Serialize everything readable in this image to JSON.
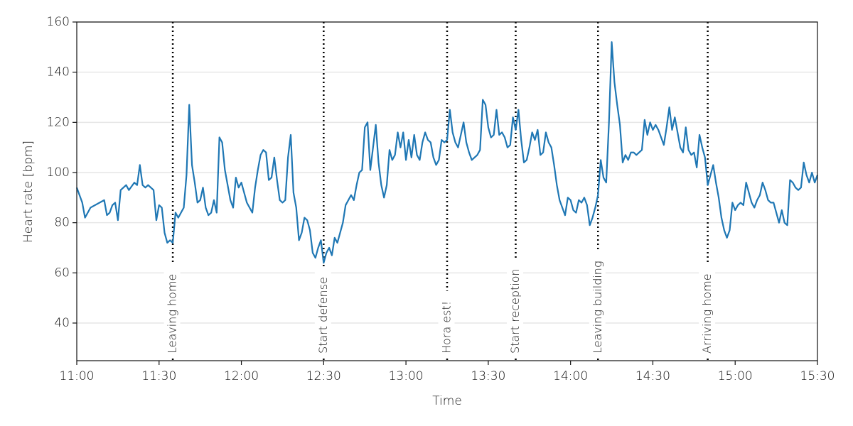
{
  "chart_data": {
    "type": "line",
    "xlabel": "Time",
    "ylabel": "Heart rate [bpm]",
    "xlim": [
      "11:00",
      "15:30"
    ],
    "xticks": [
      "11:00",
      "11:30",
      "12:00",
      "12:30",
      "13:00",
      "13:30",
      "14:00",
      "14:30",
      "15:00",
      "15:30"
    ],
    "ylim": [
      25,
      160
    ],
    "yticks": [
      40,
      60,
      80,
      100,
      120,
      140,
      160
    ],
    "grid": true,
    "annotations": [
      {
        "x": "11:35",
        "label": "Leaving home"
      },
      {
        "x": "12:30",
        "label": "Start defense"
      },
      {
        "x": "13:15",
        "label": "Hora est!"
      },
      {
        "x": "13:40",
        "label": "Start reception"
      },
      {
        "x": "14:10",
        "label": "Leaving building"
      },
      {
        "x": "14:50",
        "label": "Arriving home"
      }
    ],
    "x": [
      "11:00",
      "11:02",
      "11:03",
      "11:05",
      "11:10",
      "11:11",
      "11:12",
      "11:13",
      "11:14",
      "11:15",
      "11:16",
      "11:18",
      "11:19",
      "11:21",
      "11:22",
      "11:23",
      "11:24",
      "11:25",
      "11:26",
      "11:28",
      "11:29",
      "11:30",
      "11:31",
      "11:32",
      "11:33",
      "11:34",
      "11:35",
      "11:36",
      "11:37",
      "11:38",
      "11:39",
      "11:40",
      "11:41",
      "11:42",
      "11:43",
      "11:44",
      "11:45",
      "11:46",
      "11:47",
      "11:48",
      "11:49",
      "11:50",
      "11:51",
      "11:52",
      "11:53",
      "11:54",
      "11:55",
      "11:56",
      "11:57",
      "11:58",
      "11:59",
      "12:00",
      "12:01",
      "12:02",
      "12:03",
      "12:04",
      "12:05",
      "12:06",
      "12:07",
      "12:08",
      "12:09",
      "12:10",
      "12:11",
      "12:12",
      "12:13",
      "12:14",
      "12:15",
      "12:16",
      "12:17",
      "12:18",
      "12:19",
      "12:20",
      "12:21",
      "12:22",
      "12:23",
      "12:24",
      "12:25",
      "12:26",
      "12:27",
      "12:28",
      "12:29",
      "12:30",
      "12:31",
      "12:32",
      "12:33",
      "12:34",
      "12:35",
      "12:36",
      "12:37",
      "12:38",
      "12:39",
      "12:40",
      "12:41",
      "12:42",
      "12:43",
      "12:44",
      "12:45",
      "12:46",
      "12:47",
      "12:48",
      "12:49",
      "12:50",
      "12:51",
      "12:52",
      "12:53",
      "12:54",
      "12:55",
      "12:56",
      "12:57",
      "12:58",
      "12:59",
      "13:00",
      "13:01",
      "13:02",
      "13:03",
      "13:04",
      "13:05",
      "13:06",
      "13:07",
      "13:08",
      "13:09",
      "13:10",
      "13:11",
      "13:12",
      "13:13",
      "13:14",
      "13:15",
      "13:16",
      "13:17",
      "13:18",
      "13:19",
      "13:20",
      "13:21",
      "13:22",
      "13:23",
      "13:24",
      "13:25",
      "13:26",
      "13:27",
      "13:28",
      "13:29",
      "13:30",
      "13:31",
      "13:32",
      "13:33",
      "13:34",
      "13:35",
      "13:36",
      "13:37",
      "13:38",
      "13:39",
      "13:40",
      "13:41",
      "13:42",
      "13:43",
      "13:44",
      "13:45",
      "13:46",
      "13:47",
      "13:48",
      "13:49",
      "13:50",
      "13:51",
      "13:52",
      "13:53",
      "13:54",
      "13:55",
      "13:56",
      "13:57",
      "13:58",
      "13:59",
      "14:00",
      "14:01",
      "14:02",
      "14:03",
      "14:04",
      "14:05",
      "14:06",
      "14:07",
      "14:08",
      "14:09",
      "14:10",
      "14:11",
      "14:12",
      "14:13",
      "14:14",
      "14:15",
      "14:16",
      "14:17",
      "14:18",
      "14:19",
      "14:20",
      "14:21",
      "14:22",
      "14:23",
      "14:24",
      "14:25",
      "14:26",
      "14:27",
      "14:28",
      "14:29",
      "14:30",
      "14:31",
      "14:32",
      "14:33",
      "14:34",
      "14:35",
      "14:36",
      "14:37",
      "14:38",
      "14:39",
      "14:40",
      "14:41",
      "14:42",
      "14:43",
      "14:44",
      "14:45",
      "14:46",
      "14:47",
      "14:48",
      "14:49",
      "14:50",
      "14:51",
      "14:52",
      "14:53",
      "14:54",
      "14:55",
      "14:56",
      "14:57",
      "14:58",
      "14:59",
      "15:00",
      "15:01",
      "15:02",
      "15:03",
      "15:04",
      "15:05",
      "15:06",
      "15:07",
      "15:08",
      "15:09",
      "15:10",
      "15:11",
      "15:12",
      "15:13",
      "15:14",
      "15:15",
      "15:16",
      "15:17",
      "15:18",
      "15:19",
      "15:20",
      "15:21",
      "15:22",
      "15:23",
      "15:24",
      "15:25",
      "15:26",
      "15:27",
      "15:28",
      "15:29",
      "15:30"
    ],
    "series": [
      {
        "name": "Heart rate",
        "color": "#1f77b4",
        "values": [
          94,
          88,
          82,
          86,
          89,
          83,
          84,
          87,
          88,
          81,
          93,
          95,
          93,
          96,
          95,
          103,
          95,
          94,
          95,
          93,
          81,
          87,
          86,
          76,
          72,
          73,
          72,
          84,
          82,
          84,
          86,
          99,
          127,
          103,
          96,
          88,
          89,
          94,
          86,
          83,
          84,
          89,
          84,
          114,
          112,
          101,
          95,
          89,
          86,
          98,
          94,
          96,
          92,
          88,
          86,
          84,
          94,
          101,
          107,
          109,
          108,
          97,
          98,
          106,
          97,
          89,
          88,
          89,
          106,
          115,
          92,
          86,
          73,
          76,
          82,
          81,
          77,
          68,
          66,
          70,
          73,
          64,
          68,
          70,
          67,
          74,
          72,
          76,
          80,
          87,
          89,
          91,
          89,
          95,
          100,
          101,
          118,
          120,
          101,
          110,
          119,
          104,
          95,
          90,
          95,
          109,
          105,
          107,
          116,
          110,
          116,
          105,
          113,
          106,
          115,
          107,
          105,
          112,
          116,
          113,
          112,
          106,
          103,
          105,
          113,
          112,
          113,
          125,
          116,
          112,
          110,
          115,
          120,
          112,
          108,
          105,
          106,
          107,
          109,
          129,
          127,
          118,
          114,
          115,
          125,
          115,
          116,
          114,
          110,
          111,
          122,
          117,
          125,
          113,
          104,
          105,
          110,
          116,
          113,
          117,
          107,
          108,
          116,
          112,
          110,
          103,
          95,
          89,
          86,
          83,
          90,
          89,
          85,
          84,
          89,
          88,
          90,
          87,
          79,
          82,
          86,
          91,
          105,
          98,
          96,
          120,
          152,
          136,
          127,
          119,
          104,
          107,
          105,
          108,
          108,
          107,
          108,
          109,
          121,
          115,
          120,
          117,
          119,
          117,
          114,
          111,
          118,
          126,
          117,
          122,
          116,
          110,
          108,
          118,
          109,
          107,
          108,
          102,
          115,
          110,
          106,
          95,
          99,
          103,
          96,
          90,
          82,
          77,
          74,
          77,
          88,
          85,
          87,
          88,
          87,
          96,
          92,
          88,
          86,
          89,
          91,
          96,
          93,
          89,
          88,
          88,
          84,
          80,
          85,
          80,
          79,
          97,
          96,
          94,
          93,
          94,
          104,
          99,
          96,
          100,
          96,
          99
        ]
      }
    ]
  }
}
